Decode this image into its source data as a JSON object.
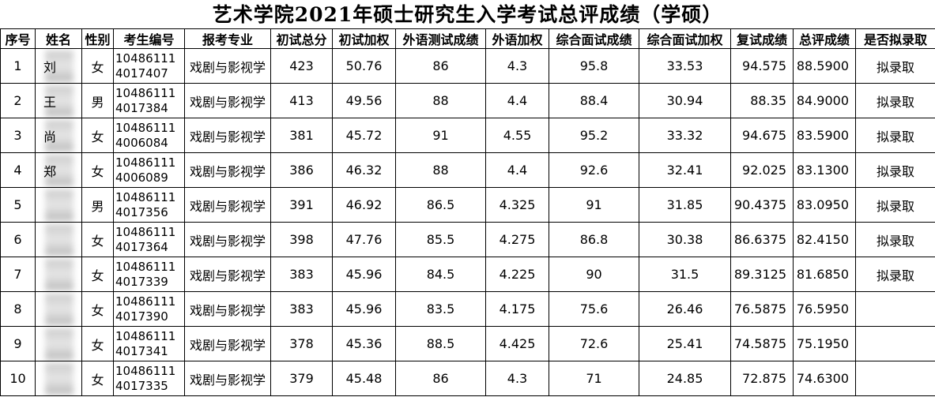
{
  "title": "艺术学院2021年硕士研究生入学考试总评成绩（学硕）",
  "table": {
    "header": [
      "序号",
      "姓名",
      "性别",
      "考生编号",
      "报考专业",
      "初试总分",
      "初试加权",
      "外语测试成绩",
      "外语加权",
      "综合面试成绩",
      "综合面试加权",
      "复试成绩",
      "总评成绩",
      "是否拟录取"
    ],
    "rows": [
      [
        "1",
        "刘",
        "女",
        "104861114017407",
        "戏剧与影视学",
        "423",
        "50.76",
        "86",
        "4.3",
        "95.8",
        "33.53",
        "94.575",
        "88.5900",
        "拟录取"
      ],
      [
        "2",
        "王",
        "男",
        "104861114017384",
        "戏剧与影视学",
        "413",
        "49.56",
        "88",
        "4.4",
        "88.4",
        "30.94",
        "88.35",
        "84.9000",
        "拟录取"
      ],
      [
        "3",
        "尚",
        "女",
        "104861114006084",
        "戏剧与影视学",
        "381",
        "45.72",
        "91",
        "4.55",
        "95.2",
        "33.32",
        "94.675",
        "83.5900",
        "拟录取"
      ],
      [
        "4",
        "郑",
        "女",
        "104861114006089",
        "戏剧与影视学",
        "386",
        "46.32",
        "88",
        "4.4",
        "92.6",
        "32.41",
        "92.025",
        "83.1300",
        "拟录取"
      ],
      [
        "5",
        null,
        "男",
        "104861114017356",
        "戏剧与影视学",
        "391",
        "46.92",
        "86.5",
        "4.325",
        "91",
        "31.85",
        "90.4375",
        "83.0950",
        "拟录取"
      ],
      [
        "6",
        null,
        "女",
        "104861114017364",
        "戏剧与影视学",
        "398",
        "47.76",
        "85.5",
        "4.275",
        "86.8",
        "30.38",
        "86.6375",
        "82.4150",
        "拟录取"
      ],
      [
        "7",
        null,
        "女",
        "104861114017339",
        "戏剧与影视学",
        "383",
        "45.96",
        "84.5",
        "4.225",
        "90",
        "31.5",
        "89.3125",
        "81.6850",
        "拟录取"
      ],
      [
        "8",
        null,
        "女",
        "104861114017390",
        "戏剧与影视学",
        "383",
        "45.96",
        "83.5",
        "4.175",
        "75.6",
        "26.46",
        "76.5875",
        "76.5950",
        null
      ],
      [
        "9",
        null,
        "女",
        "104861114017341",
        "戏剧与影视学",
        "378",
        "45.36",
        "88.5",
        "4.425",
        "72.6",
        "25.41",
        "74.5875",
        "75.1950",
        null
      ],
      [
        "10",
        null,
        "女",
        "104861114017335",
        "戏剧与影视学",
        "379",
        "45.48",
        "86",
        "4.3",
        "71",
        "24.85",
        "72.875",
        "74.6300",
        null
      ]
    ]
  }
}
